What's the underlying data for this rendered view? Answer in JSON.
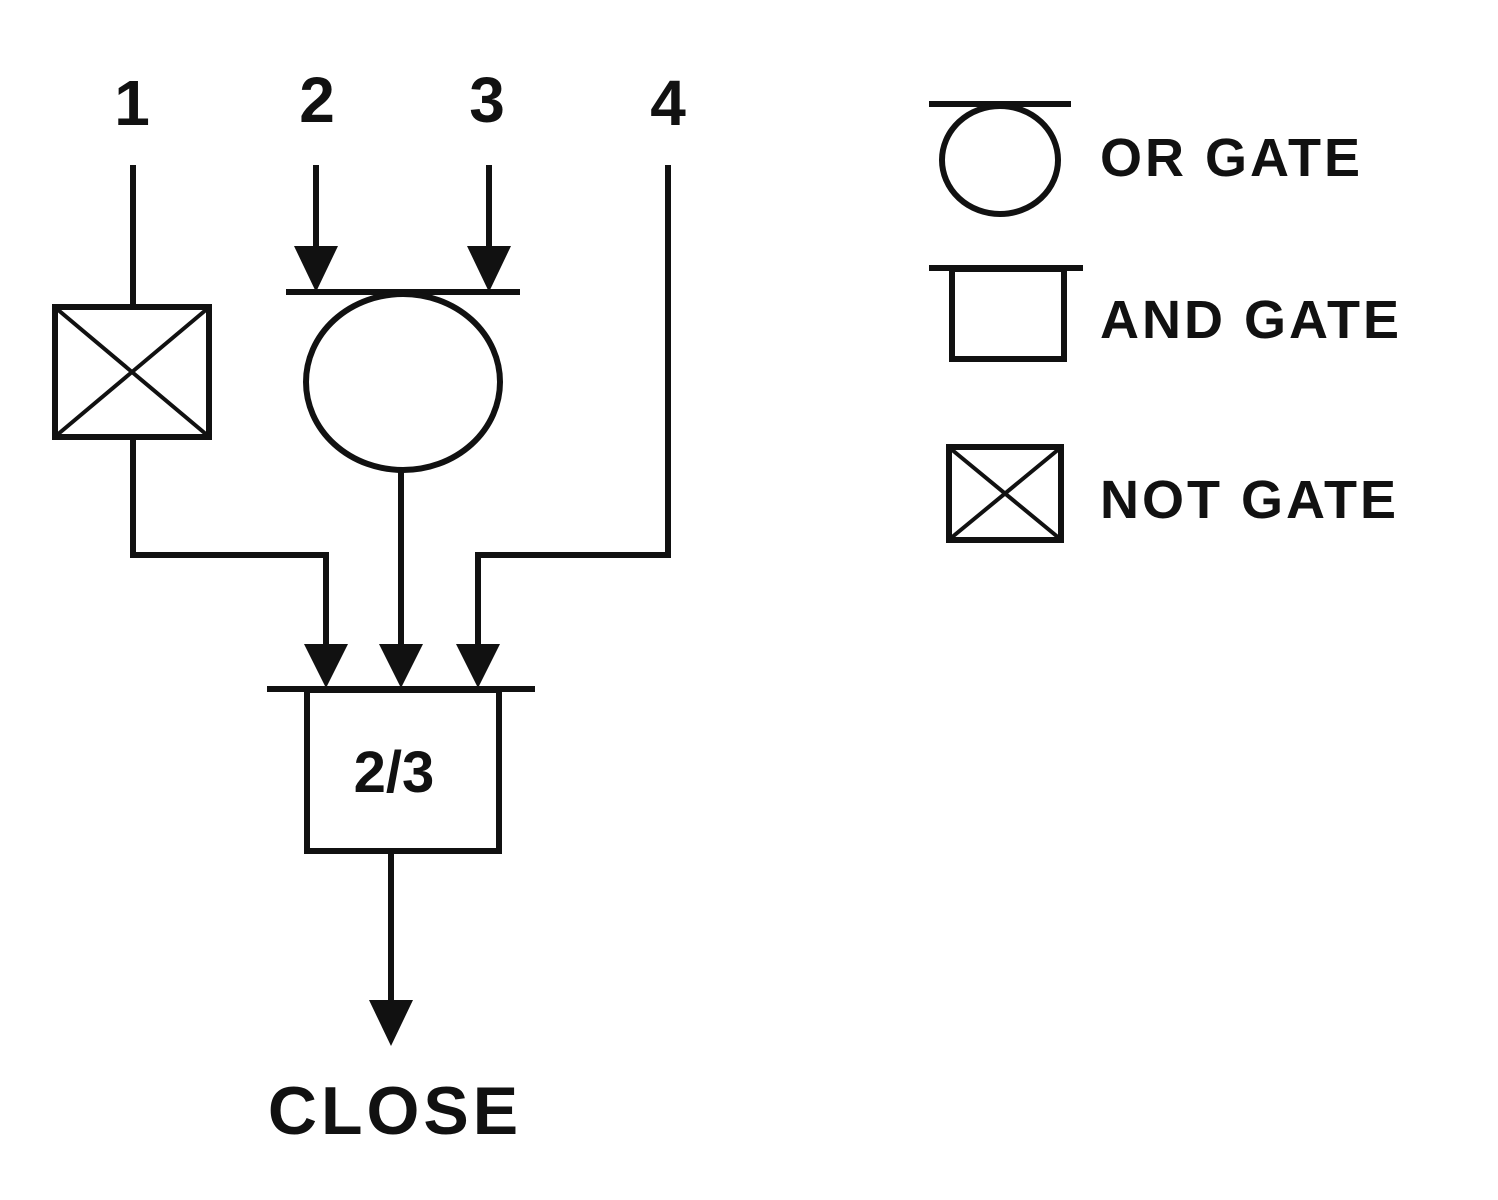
{
  "inputs": [
    "1",
    "2",
    "3",
    "4"
  ],
  "voting_gate": {
    "label": "2/3"
  },
  "output": {
    "label": "CLOSE"
  },
  "legend": {
    "or_gate": "OR GATE",
    "and_gate": "AND GATE",
    "not_gate": "NOT GATE"
  },
  "colors": {
    "stroke": "#111111",
    "background": "#ffffff"
  }
}
